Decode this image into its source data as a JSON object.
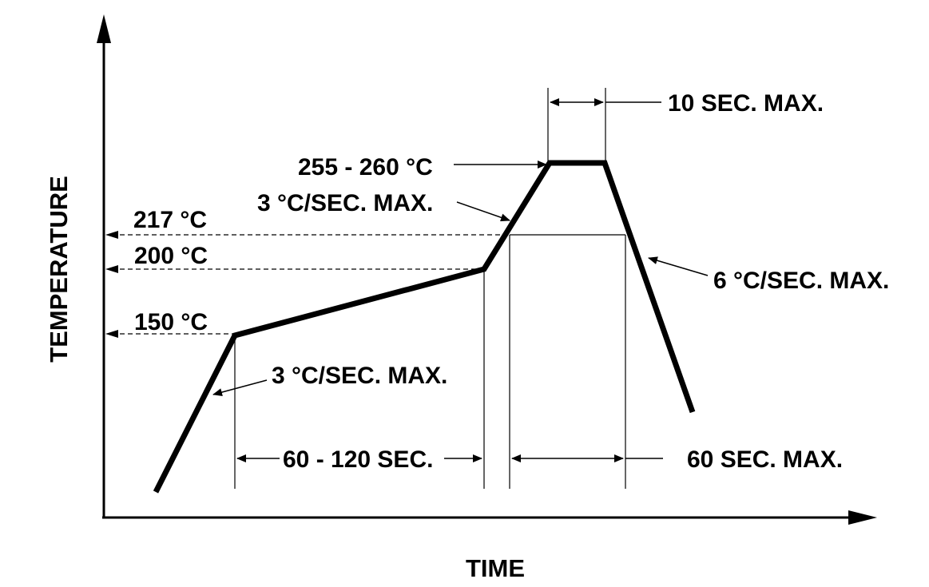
{
  "axes": {
    "x_label": "TIME",
    "y_label": "TEMPERATURE"
  },
  "temperature_levels": {
    "t150": "150 °C",
    "t200": "200 °C",
    "t217": "217 °C",
    "peak": "255 - 260 °C"
  },
  "annotations": {
    "ramp_up_1": "3 °C/SEC. MAX.",
    "ramp_up_2": "3 °C/SEC. MAX.",
    "ramp_down": "6 °C/SEC. MAX.",
    "peak_time": "10 SEC. MAX.",
    "soak_time": "60 - 120 SEC.",
    "above_liquidus_time": "60 SEC. MAX."
  },
  "profile": {
    "segments": [
      "ramp to 150 °C",
      "soak 150 °C to 200 °C",
      "ramp to peak",
      "peak hold",
      "cool down"
    ]
  }
}
